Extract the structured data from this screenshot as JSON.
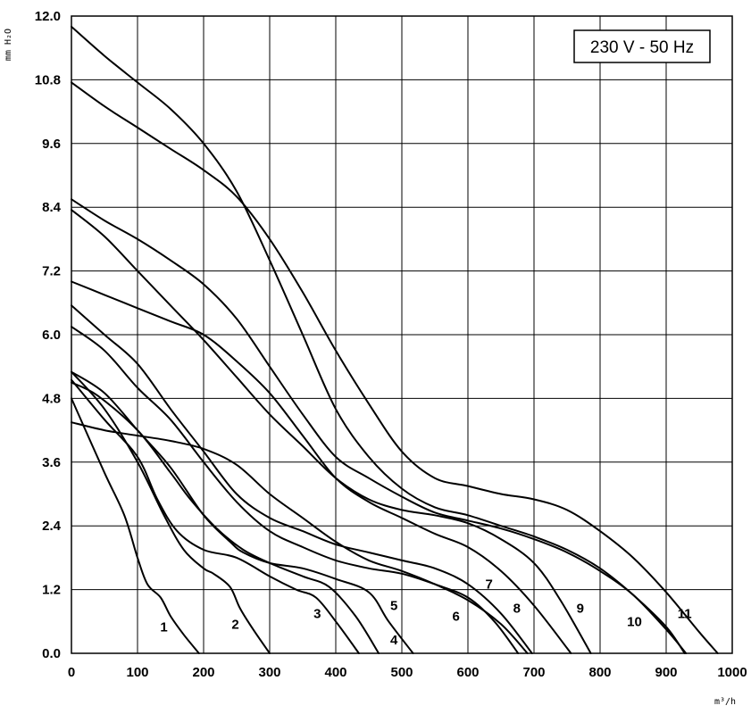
{
  "chart_data": {
    "type": "line",
    "badge": "230 V - 50 Hz",
    "xlabel": "m³/h",
    "ylabel": "mm H₂O",
    "xlim": [
      0,
      1000
    ],
    "ylim": [
      0,
      12
    ],
    "xticks": [
      "0",
      "100",
      "200",
      "300",
      "400",
      "500",
      "600",
      "700",
      "800",
      "900",
      "1000"
    ],
    "yticks": [
      "0.0",
      "1.2",
      "2.4",
      "3.6",
      "4.8",
      "6.0",
      "7.2",
      "8.4",
      "9.6",
      "10.8",
      "12.0"
    ],
    "grid": true,
    "series": [
      {
        "name": "1",
        "label_at": [
          140,
          0.5
        ],
        "points": [
          [
            0,
            4.8
          ],
          [
            50,
            3.4
          ],
          [
            80,
            2.6
          ],
          [
            100,
            1.8
          ],
          [
            115,
            1.3
          ],
          [
            135,
            1.05
          ],
          [
            150,
            0.7
          ],
          [
            170,
            0.35
          ],
          [
            193,
            0
          ]
        ]
      },
      {
        "name": "2",
        "label_at": [
          248,
          0.55
        ],
        "points": [
          [
            0,
            5.3
          ],
          [
            50,
            4.6
          ],
          [
            100,
            3.6
          ],
          [
            140,
            2.6
          ],
          [
            170,
            1.95
          ],
          [
            200,
            1.6
          ],
          [
            215,
            1.5
          ],
          [
            240,
            1.25
          ],
          [
            255,
            0.85
          ],
          [
            275,
            0.45
          ],
          [
            300,
            0
          ]
        ]
      },
      {
        "name": "3",
        "label_at": [
          372,
          0.75
        ],
        "points": [
          [
            0,
            5.15
          ],
          [
            50,
            4.4
          ],
          [
            100,
            3.7
          ],
          [
            130,
            2.9
          ],
          [
            160,
            2.3
          ],
          [
            200,
            1.95
          ],
          [
            250,
            1.8
          ],
          [
            300,
            1.45
          ],
          [
            340,
            1.2
          ],
          [
            370,
            1.05
          ],
          [
            400,
            0.6
          ],
          [
            435,
            0
          ]
        ]
      },
      {
        "name": "4",
        "label_at": [
          488,
          0.25
        ],
        "points": [
          [
            0,
            5.1
          ],
          [
            40,
            4.85
          ],
          [
            100,
            4.2
          ],
          [
            150,
            3.4
          ],
          [
            180,
            2.9
          ],
          [
            220,
            2.35
          ],
          [
            260,
            1.95
          ],
          [
            300,
            1.7
          ],
          [
            350,
            1.45
          ],
          [
            390,
            1.25
          ],
          [
            430,
            0.7
          ],
          [
            465,
            0
          ]
        ]
      },
      {
        "name": "5",
        "label_at": [
          488,
          0.9
        ],
        "points": [
          [
            0,
            5.3
          ],
          [
            50,
            4.9
          ],
          [
            100,
            4.2
          ],
          [
            150,
            3.5
          ],
          [
            200,
            2.6
          ],
          [
            240,
            2.1
          ],
          [
            260,
            1.9
          ],
          [
            300,
            1.7
          ],
          [
            350,
            1.6
          ],
          [
            400,
            1.4
          ],
          [
            450,
            1.15
          ],
          [
            480,
            0.6
          ],
          [
            517,
            0
          ]
        ]
      },
      {
        "name": "6",
        "label_at": [
          582,
          0.7
        ],
        "points": [
          [
            0,
            6.15
          ],
          [
            50,
            5.7
          ],
          [
            100,
            5.0
          ],
          [
            150,
            4.4
          ],
          [
            200,
            3.6
          ],
          [
            250,
            2.85
          ],
          [
            300,
            2.3
          ],
          [
            350,
            2.0
          ],
          [
            400,
            1.75
          ],
          [
            450,
            1.6
          ],
          [
            500,
            1.5
          ],
          [
            550,
            1.3
          ],
          [
            600,
            1.05
          ],
          [
            640,
            0.6
          ],
          [
            676,
            0
          ]
        ]
      },
      {
        "name": "7",
        "label_at": [
          632,
          1.3
        ],
        "points": [
          [
            0,
            6.55
          ],
          [
            50,
            6.0
          ],
          [
            100,
            5.45
          ],
          [
            150,
            4.6
          ],
          [
            200,
            3.8
          ],
          [
            250,
            3.0
          ],
          [
            300,
            2.55
          ],
          [
            350,
            2.3
          ],
          [
            400,
            2.05
          ],
          [
            450,
            1.9
          ],
          [
            500,
            1.75
          ],
          [
            550,
            1.6
          ],
          [
            600,
            1.3
          ],
          [
            650,
            0.75
          ],
          [
            697,
            0
          ]
        ]
      },
      {
        "name": "8",
        "label_at": [
          674,
          0.85
        ],
        "points": [
          [
            0,
            7.0
          ],
          [
            50,
            6.75
          ],
          [
            100,
            6.5
          ],
          [
            150,
            6.25
          ],
          [
            200,
            6.0
          ],
          [
            250,
            5.5
          ],
          [
            300,
            4.9
          ],
          [
            350,
            4.1
          ],
          [
            400,
            3.3
          ],
          [
            450,
            2.85
          ],
          [
            500,
            2.55
          ],
          [
            550,
            2.25
          ],
          [
            600,
            2.0
          ],
          [
            650,
            1.55
          ],
          [
            700,
            0.9
          ],
          [
            756,
            0
          ]
        ]
      },
      {
        "name": "9",
        "label_at": [
          770,
          0.85
        ],
        "points": [
          [
            0,
            8.35
          ],
          [
            50,
            7.85
          ],
          [
            100,
            7.2
          ],
          [
            150,
            6.55
          ],
          [
            200,
            5.9
          ],
          [
            250,
            5.2
          ],
          [
            300,
            4.5
          ],
          [
            350,
            3.9
          ],
          [
            400,
            3.3
          ],
          [
            450,
            2.9
          ],
          [
            500,
            2.7
          ],
          [
            550,
            2.6
          ],
          [
            600,
            2.45
          ],
          [
            650,
            2.15
          ],
          [
            700,
            1.7
          ],
          [
            740,
            1.0
          ],
          [
            786,
            0
          ]
        ]
      },
      {
        "name": "10",
        "label_at": [
          852,
          0.6
        ],
        "points": [
          [
            0,
            8.55
          ],
          [
            50,
            8.15
          ],
          [
            100,
            7.8
          ],
          [
            150,
            7.4
          ],
          [
            200,
            6.95
          ],
          [
            250,
            6.3
          ],
          [
            300,
            5.4
          ],
          [
            350,
            4.5
          ],
          [
            400,
            3.7
          ],
          [
            450,
            3.3
          ],
          [
            500,
            2.95
          ],
          [
            550,
            2.65
          ],
          [
            600,
            2.5
          ],
          [
            650,
            2.35
          ],
          [
            700,
            2.15
          ],
          [
            750,
            1.9
          ],
          [
            800,
            1.55
          ],
          [
            850,
            1.1
          ],
          [
            900,
            0.45
          ],
          [
            930,
            0
          ]
        ]
      },
      {
        "name": "11",
        "label_at": [
          928,
          0.75
        ],
        "points": [
          [
            0,
            10.75
          ],
          [
            50,
            10.3
          ],
          [
            100,
            9.9
          ],
          [
            150,
            9.5
          ],
          [
            200,
            9.1
          ],
          [
            250,
            8.6
          ],
          [
            300,
            7.8
          ],
          [
            350,
            6.8
          ],
          [
            400,
            5.7
          ],
          [
            450,
            4.7
          ],
          [
            500,
            3.8
          ],
          [
            550,
            3.3
          ],
          [
            600,
            3.15
          ],
          [
            650,
            3.0
          ],
          [
            700,
            2.9
          ],
          [
            750,
            2.7
          ],
          [
            800,
            2.3
          ],
          [
            850,
            1.8
          ],
          [
            900,
            1.15
          ],
          [
            950,
            0.4
          ],
          [
            978,
            0
          ]
        ]
      },
      {
        "name": "",
        "label_at": null,
        "points": [
          [
            0,
            11.8
          ],
          [
            50,
            11.25
          ],
          [
            100,
            10.75
          ],
          [
            150,
            10.25
          ],
          [
            200,
            9.6
          ],
          [
            250,
            8.7
          ],
          [
            300,
            7.4
          ],
          [
            350,
            6.0
          ],
          [
            400,
            4.6
          ],
          [
            450,
            3.7
          ],
          [
            500,
            3.1
          ],
          [
            550,
            2.75
          ],
          [
            600,
            2.6
          ],
          [
            650,
            2.4
          ],
          [
            700,
            2.2
          ],
          [
            750,
            1.95
          ],
          [
            800,
            1.6
          ],
          [
            850,
            1.1
          ],
          [
            900,
            0.5
          ],
          [
            928,
            0
          ]
        ]
      },
      {
        "name": "",
        "label_at": null,
        "points": [
          [
            0,
            4.35
          ],
          [
            50,
            4.2
          ],
          [
            100,
            4.1
          ],
          [
            150,
            4.0
          ],
          [
            200,
            3.85
          ],
          [
            250,
            3.55
          ],
          [
            300,
            3.0
          ],
          [
            350,
            2.55
          ],
          [
            400,
            2.1
          ],
          [
            450,
            1.75
          ],
          [
            500,
            1.55
          ],
          [
            550,
            1.3
          ],
          [
            600,
            1.0
          ],
          [
            650,
            0.55
          ],
          [
            690,
            0
          ]
        ]
      }
    ]
  }
}
